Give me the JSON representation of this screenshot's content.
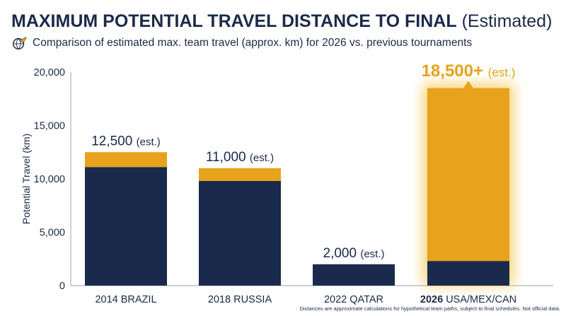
{
  "header": {
    "title_main": "MAXIMUM POTENTIAL TRAVEL DISTANCE TO FINAL",
    "title_suffix": "(Estimated)",
    "subtitle": "Comparison of estimated max. team travel (approx. km) for 2026 vs. previous tournaments",
    "icon": "plane-globe-icon"
  },
  "footnote": "Distances are approximate calculations for hypothetical team paths, subject to final schedules. Not official data.",
  "colors": {
    "navy": "#1a2a4c",
    "gold": "#e8a21b",
    "text": "#1b2a4a",
    "glow": "#f6c548"
  },
  "chart_data": {
    "type": "bar",
    "ylabel": "Potential Travel (km)",
    "ylim": [
      0,
      20000
    ],
    "yticks": [
      0,
      5000,
      10000,
      15000,
      20000
    ],
    "ytick_labels": [
      "0",
      "5,000",
      "10,000",
      "15,000",
      "20,000"
    ],
    "grid": false,
    "categories": [
      {
        "year": "2014",
        "name": "BRAZIL",
        "bold_year": false
      },
      {
        "year": "2018",
        "name": "RUSSIA",
        "bold_year": false
      },
      {
        "year": "2022",
        "name": "QATAR",
        "bold_year": false
      },
      {
        "year": "2026",
        "name": "USA/MEX/CAN",
        "bold_year": true
      }
    ],
    "series": [
      {
        "values": [
          11100,
          9800,
          2000,
          2300
        ]
      },
      {
        "values": [
          1400,
          1200,
          0,
          16200
        ]
      }
    ],
    "totals": [
      12500,
      11000,
      2000,
      18500
    ],
    "data_labels": [
      {
        "value": "12,500",
        "suffix": "(est.)"
      },
      {
        "value": "11,000",
        "suffix": "(est.)"
      },
      {
        "value": "2,000",
        "suffix": "(est.)"
      },
      {
        "value": "18,500+",
        "suffix": "(est.)"
      }
    ],
    "highlight_index": 3
  }
}
